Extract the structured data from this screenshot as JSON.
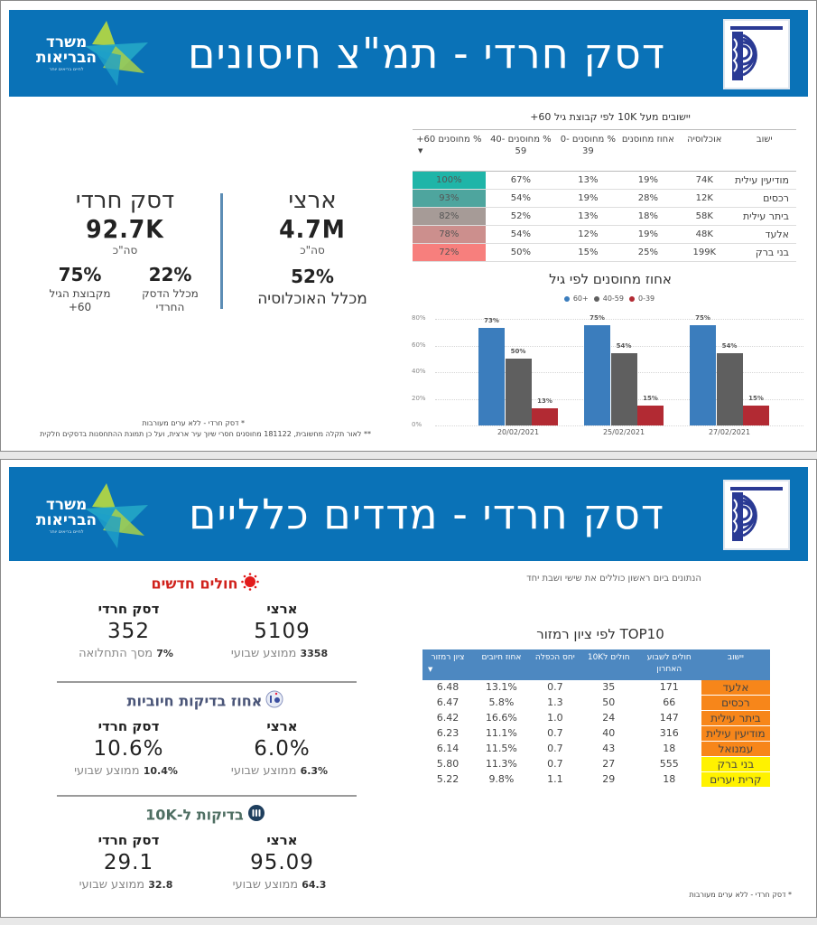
{
  "colors": {
    "banner": "#0a72b7",
    "series_60_plus": "#3b7dbd",
    "series_40_59": "#5f5f5f",
    "series_0_39": "#b22a33",
    "new_cases_title": "#d0221c",
    "positive_tests_title": "#4a5578",
    "tests_title": "#4f6f63",
    "top10_header": "#4d88c1",
    "orange_zone": "#f7861a",
    "yellow_zone": "#fff200"
  },
  "slide1": {
    "banner_title": "דסק חרדי - תמ\"צ חיסונים",
    "logo": {
      "line1": "משרד",
      "line2": "הבריאות",
      "tagline": "לחיים בריאים יותר"
    },
    "national": {
      "title": "ארצי",
      "total": "4.7M",
      "total_label": "סה\"כ",
      "pct": "52%",
      "pct_label": "מכלל האוכלוסיה"
    },
    "haredi": {
      "title": "דסק חרדי",
      "total": "92.7K",
      "total_label": "סה\"כ",
      "pct_of_desk": "22%",
      "pct_of_desk_label_1": "מכלל הדסק",
      "pct_of_desk_label_2": "החרדי",
      "pct_60": "75%",
      "pct_60_label_1": "מקבוצת הגיל",
      "pct_60_label_2": "60+"
    },
    "footnote_1": "* דסק חרדי - ללא ערים מעורבות",
    "footnote_2": "** לאור תקלה מחשובית, 181122 מחוסנים חסרי שיוך עיר ארצית, ועל כן תמונת ההתחסנות בדסקים חלקית",
    "table": {
      "title": "יישובים מעל 10K לפי קבוצת גיל 60+",
      "headers": [
        "ישוב",
        "אוכלוסיה",
        "אחוז מחוסנים",
        "% מחוסנים 0-39",
        "% מחוסנים 40-59",
        "% מחוסנים 60+"
      ],
      "rows": [
        {
          "city": "מודיעין עילית",
          "pop": "74K",
          "pct": "19%",
          "a": "13%",
          "b": "67%",
          "c": "100%",
          "heat": "#1fb5a8"
        },
        {
          "city": "רכסים",
          "pop": "12K",
          "pct": "28%",
          "a": "19%",
          "b": "54%",
          "c": "93%",
          "heat": "#4ea59e"
        },
        {
          "city": "ביתר עילית",
          "pop": "58K",
          "pct": "18%",
          "a": "13%",
          "b": "52%",
          "c": "82%",
          "heat": "#a69b97"
        },
        {
          "city": "אלעד",
          "pop": "48K",
          "pct": "19%",
          "a": "12%",
          "b": "54%",
          "c": "78%",
          "heat": "#cc8f8d"
        },
        {
          "city": "בני ברק",
          "pop": "199K",
          "pct": "25%",
          "a": "15%",
          "b": "50%",
          "c": "72%",
          "heat": "#f77f7d"
        }
      ]
    }
  },
  "chart_data": {
    "type": "bar",
    "title": "אחוז מחוסנים לפי גיל",
    "categories": [
      "20/02/2021",
      "25/02/2021",
      "27/02/2021"
    ],
    "series": [
      {
        "name": "60+",
        "values": [
          73,
          75,
          75
        ],
        "color": "#3b7dbd"
      },
      {
        "name": "40-59",
        "values": [
          50,
          54,
          54
        ],
        "color": "#5f5f5f"
      },
      {
        "name": "0-39",
        "values": [
          13,
          15,
          15
        ],
        "color": "#b22a33"
      }
    ],
    "yticks": [
      "0%",
      "20%",
      "40%",
      "60%",
      "80%"
    ],
    "ylim": [
      0,
      80
    ],
    "xlabel": "",
    "ylabel": "",
    "legend_position": "top",
    "grid": true
  },
  "slide2": {
    "banner_title": "דסק חרדי - מדדים כלליים",
    "note": "הנתונים ביום ראשון כוללים את שישי ושבת יחד",
    "new_cases": {
      "title": "חולים חדשים",
      "icon": "virus-icon",
      "national": {
        "who": "ארצי",
        "num": "5109",
        "sub_val": "3358",
        "sub_lbl": "ממוצע שבועי"
      },
      "haredi": {
        "who": "דסק חרדי",
        "num": "352",
        "sub_val": "7%",
        "sub_lbl": "מסך התחלואה"
      }
    },
    "positive_tests": {
      "title": "אחוז בדיקות חיוביות",
      "icon": "lab-test-icon",
      "national": {
        "who": "ארצי",
        "num": "6.0%",
        "sub_val": "6.3%",
        "sub_lbl": "ממוצע שבועי"
      },
      "haredi": {
        "who": "דסק חרדי",
        "num": "10.6%",
        "sub_val": "10.4%",
        "sub_lbl": "ממוצע שבועי"
      }
    },
    "tests_per_10k": {
      "title": "בדיקות ל-10K",
      "icon": "test-tubes-icon",
      "national": {
        "who": "ארצי",
        "num": "95.09",
        "sub_val": "64.3",
        "sub_lbl": "ממוצע שבועי"
      },
      "haredi": {
        "who": "דסק חרדי",
        "num": "29.1",
        "sub_val": "32.8",
        "sub_lbl": "ממוצע שבועי"
      }
    },
    "top10": {
      "title": "TOP10 לפי ציון רמזור",
      "headers": [
        "יישוב",
        "חולים לשבוע האחרון",
        "חולים ל10K",
        "יחס הכפלה",
        "אחוז חיובים",
        "ציון רמזור"
      ],
      "rows": [
        {
          "city": "אלעד",
          "week": "171",
          "per10k": "35",
          "ratio": "0.7",
          "pos": "13.1%",
          "score": "6.48",
          "zone": "#f7861a"
        },
        {
          "city": "רכסים",
          "week": "66",
          "per10k": "50",
          "ratio": "1.3",
          "pos": "5.8%",
          "score": "6.47",
          "zone": "#f7861a"
        },
        {
          "city": "ביתר עילית",
          "week": "147",
          "per10k": "24",
          "ratio": "1.0",
          "pos": "16.6%",
          "score": "6.42",
          "zone": "#f7861a"
        },
        {
          "city": "מודיעין עילית",
          "week": "316",
          "per10k": "40",
          "ratio": "0.7",
          "pos": "11.1%",
          "score": "6.23",
          "zone": "#f7861a"
        },
        {
          "city": "עמנואל",
          "week": "18",
          "per10k": "43",
          "ratio": "0.7",
          "pos": "11.5%",
          "score": "6.14",
          "zone": "#f7861a"
        },
        {
          "city": "בני ברק",
          "week": "555",
          "per10k": "27",
          "ratio": "0.7",
          "pos": "11.3%",
          "score": "5.80",
          "zone": "#fff200"
        },
        {
          "city": "קרית יערים",
          "week": "18",
          "per10k": "29",
          "ratio": "1.1",
          "pos": "9.8%",
          "score": "5.22",
          "zone": "#fff200"
        }
      ]
    },
    "footnote": "* דסק חרדי - ללא ערים מעורבות"
  }
}
